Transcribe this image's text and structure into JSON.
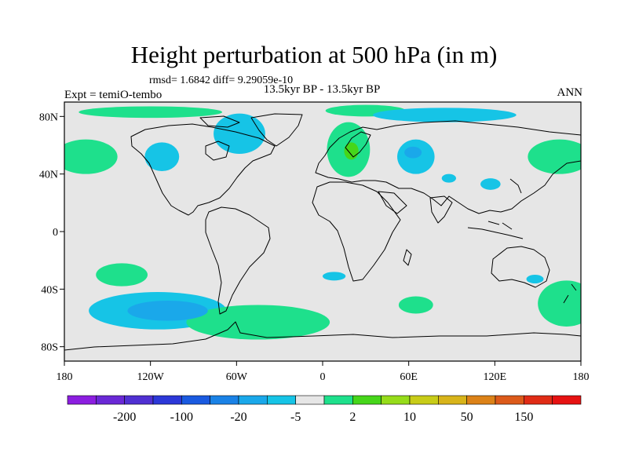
{
  "header": {
    "title": "Height perturbation at 500 hPa (in m)",
    "stats": "rmsd= 1.6842 diff= 9.29059e-10",
    "experiment": "Expt = temiO-tembo",
    "period": "13.5kyr BP - 13.5kyr BP",
    "season": "ANN"
  },
  "axes": {
    "lat_ticks": [
      {
        "value": 80,
        "label": "80N"
      },
      {
        "value": 40,
        "label": "40N"
      },
      {
        "value": 0,
        "label": "0"
      },
      {
        "value": -40,
        "label": "40S"
      },
      {
        "value": -80,
        "label": "80S"
      }
    ],
    "lon_ticks": [
      {
        "value": -180,
        "label": "180"
      },
      {
        "value": -120,
        "label": "120W"
      },
      {
        "value": -60,
        "label": "60W"
      },
      {
        "value": 0,
        "label": "0"
      },
      {
        "value": 60,
        "label": "60E"
      },
      {
        "value": 120,
        "label": "120E"
      },
      {
        "value": 180,
        "label": "180"
      }
    ],
    "lon_range": [
      -180,
      180
    ],
    "lat_range": [
      -90,
      90
    ]
  },
  "colorbar": {
    "colors": [
      "#8c1ee0",
      "#6a28d6",
      "#5030d2",
      "#2c38d8",
      "#1a5ae0",
      "#1a82e6",
      "#1aa8ea",
      "#16c4e6",
      "#e6e6e6",
      "#1ee08c",
      "#46d61a",
      "#96dc1a",
      "#c8cc18",
      "#d8b41a",
      "#dc8218",
      "#dc5a1a",
      "#e02c16",
      "#e61212"
    ],
    "labels": [
      {
        "after_index": 1,
        "text": "-200"
      },
      {
        "after_index": 3,
        "text": "-100"
      },
      {
        "after_index": 5,
        "text": "-20"
      },
      {
        "after_index": 7,
        "text": "-5"
      },
      {
        "after_index": 9,
        "text": "2"
      },
      {
        "after_index": 11,
        "text": "10"
      },
      {
        "after_index": 13,
        "text": "50"
      },
      {
        "after_index": 15,
        "text": "150"
      }
    ]
  },
  "colors": {
    "background_field": "#e6e6e6",
    "negative_shade": "#16c4e6",
    "negative_strong": "#1aa8ea",
    "positive_shade": "#1ee08c",
    "positive_strong": "#46d61a",
    "coastline": "#000000"
  },
  "fields": [
    {
      "sign": "positive",
      "lon": -165,
      "lat": 52,
      "rx": 22,
      "ry": 12
    },
    {
      "sign": "positive",
      "lon": 165,
      "lat": 52,
      "rx": 22,
      "ry": 12
    },
    {
      "sign": "negative",
      "lon": -112,
      "lat": 52,
      "rx": 12,
      "ry": 10
    },
    {
      "sign": "negative",
      "lon": -58,
      "lat": 68,
      "rx": 18,
      "ry": 14
    },
    {
      "sign": "positive",
      "lon": -120,
      "lat": 83,
      "rx": 50,
      "ry": 4
    },
    {
      "sign": "positive",
      "lon": 18,
      "lat": 57,
      "rx": 15,
      "ry": 19
    },
    {
      "sign": "positive",
      "lon": 30,
      "lat": 84,
      "rx": 28,
      "ry": 4
    },
    {
      "sign": "negative",
      "lon": 85,
      "lat": 81,
      "rx": 50,
      "ry": 5
    },
    {
      "sign": "negative",
      "lon": 65,
      "lat": 52,
      "rx": 13,
      "ry": 12
    },
    {
      "sign": "negative",
      "lon": 88,
      "lat": 37,
      "rx": 5,
      "ry": 3
    },
    {
      "sign": "negative",
      "lon": 117,
      "lat": 33,
      "rx": 7,
      "ry": 4
    },
    {
      "sign": "positive",
      "lon": -140,
      "lat": -30,
      "rx": 18,
      "ry": 8
    },
    {
      "sign": "negative",
      "lon": -115,
      "lat": -55,
      "rx": 48,
      "ry": 13
    },
    {
      "sign": "positive",
      "lon": -45,
      "lat": -63,
      "rx": 50,
      "ry": 12
    },
    {
      "sign": "positive",
      "lon": 65,
      "lat": -51,
      "rx": 12,
      "ry": 6
    },
    {
      "sign": "positive",
      "lon": 170,
      "lat": -50,
      "rx": 20,
      "ry": 16
    },
    {
      "sign": "negative",
      "lon": 8,
      "lat": -31,
      "rx": 8,
      "ry": 3
    },
    {
      "sign": "negative",
      "lon": 148,
      "lat": -33,
      "rx": 6,
      "ry": 3
    }
  ]
}
